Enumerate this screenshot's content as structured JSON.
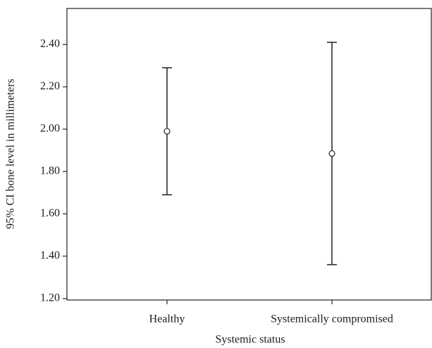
{
  "chart_data": {
    "type": "errorbar",
    "x_label": "Systemic status",
    "y_label": "95% CI bone level in millimeters",
    "categories": [
      "Healthy",
      "Systemically compromised"
    ],
    "values": [
      1.99,
      1.885
    ],
    "errors": [
      0.3,
      0.525
    ],
    "color": "#222222",
    "ylim": [
      1.193,
      2.57
    ],
    "yticks": [
      {
        "value": 1.2,
        "label": "1.20"
      },
      {
        "value": 1.4,
        "label": "1.40"
      },
      {
        "value": 1.6,
        "label": "1.60"
      },
      {
        "value": 1.8,
        "label": "1.80"
      },
      {
        "value": 2.0,
        "label": "2.00"
      },
      {
        "value": 2.2,
        "label": "2.20"
      },
      {
        "value": 2.4,
        "label": "2.40"
      }
    ],
    "grid": false
  }
}
